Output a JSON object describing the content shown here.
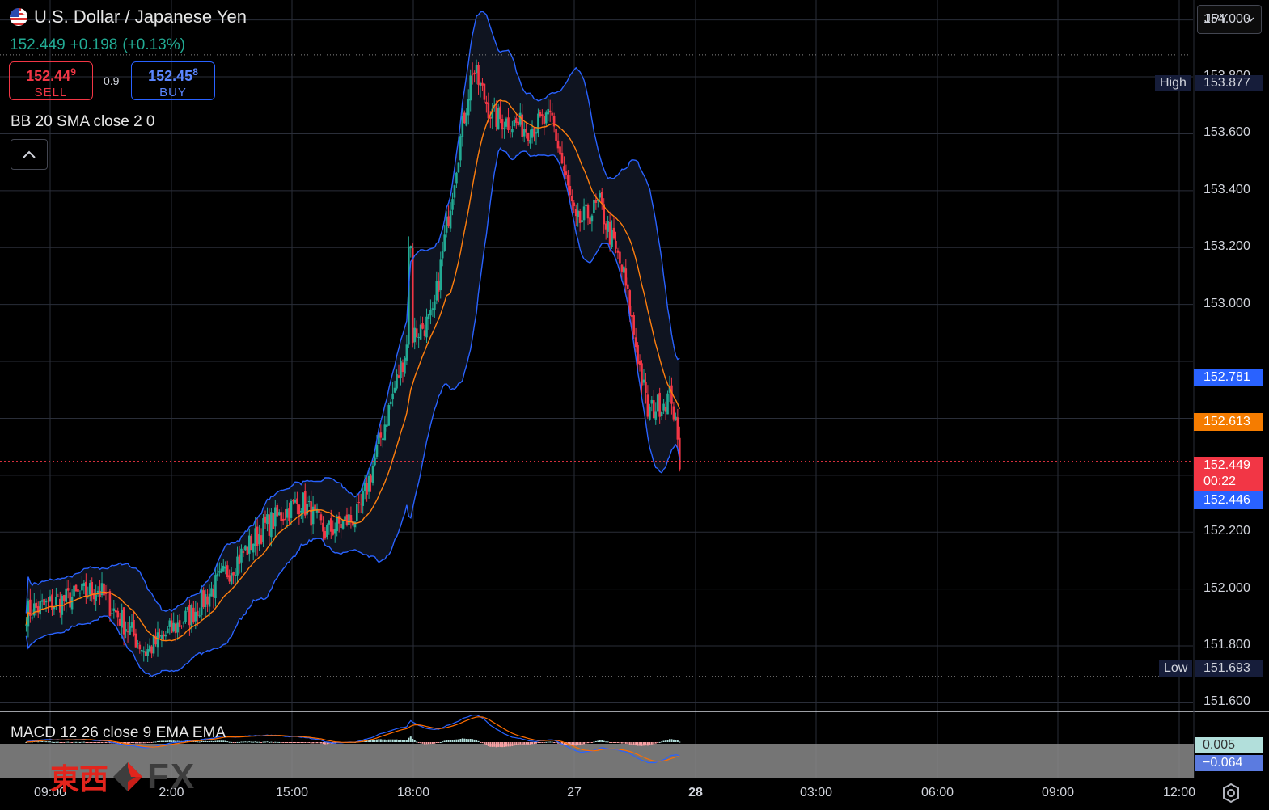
{
  "symbol": {
    "title": "U.S. Dollar / Japanese Yen",
    "last": "152.449",
    "change": "+0.198",
    "change_pct": "(+0.13%)"
  },
  "trade": {
    "sell_price_main": "152.44",
    "sell_price_sup": "9",
    "sell_label": "SELL",
    "spread": "0.9",
    "buy_price_main": "152.45",
    "buy_price_sup": "8",
    "buy_label": "BUY"
  },
  "indicators": {
    "bb_label": "BB 20 SMA close 2 0",
    "macd_label": "MACD 12 26 close 9 EMA EMA",
    "collapse_icon": "chevron-up-icon"
  },
  "currency_select": {
    "value": "JPY"
  },
  "price_axis": {
    "ticks": [
      "154.000",
      "153.800",
      "153.600",
      "153.400",
      "153.200",
      "153.000",
      "152.200",
      "152.000",
      "151.800",
      "151.600"
    ],
    "high_label": "High",
    "high_value": "153.877",
    "low_label": "Low",
    "low_value": "151.693",
    "bb_upper": "152.781",
    "bb_middle": "152.613",
    "current_price": "152.449",
    "countdown": "00:22",
    "bb_lower": "152.446"
  },
  "macd_axis": {
    "macd_value": "0.005",
    "signal_value": "−0.064"
  },
  "time_axis": {
    "ticks": [
      "09:00",
      "2:00",
      "15:00",
      "18:00",
      "27",
      "28",
      "03:00",
      "06:00",
      "09:00",
      "12:00"
    ],
    "bold": [
      false,
      false,
      false,
      false,
      false,
      true,
      false,
      false,
      false,
      false
    ]
  },
  "watermark": {
    "kanji": "東西",
    "fx": "FX"
  },
  "colors": {
    "bull": "#22ab94",
    "bear": "#f23645",
    "bb_band": "#2962ff",
    "bb_basis": "#ff7f0e",
    "grid": "#2a2e39",
    "bg": "#000000"
  },
  "chart_data": {
    "type": "candlestick",
    "symbol": "USD/JPY",
    "interval_minutes": 5,
    "ylim": [
      151.57,
      154.07
    ],
    "anchors": [
      {
        "time": "26 08:00",
        "price": 151.92
      },
      {
        "time": "26 11:00",
        "price": 152.0
      },
      {
        "time": "26 13:00",
        "price": 151.78
      },
      {
        "time": "26 15:00",
        "price": 151.92
      },
      {
        "time": "26 18:00",
        "price": 152.22
      },
      {
        "time": "26 19:30",
        "price": 152.31
      },
      {
        "time": "26 20:30",
        "price": 152.2
      },
      {
        "time": "26 21:55",
        "price": 152.26
      },
      {
        "time": "27 00:00",
        "price": 152.88
      },
      {
        "time": "27 01:00",
        "price": 152.95
      },
      {
        "time": "27 02:00",
        "price": 153.5
      },
      {
        "time": "27 02:40",
        "price": 153.83
      },
      {
        "time": "27 03:30",
        "price": 153.66
      },
      {
        "time": "27 05:00",
        "price": 153.62
      },
      {
        "time": "27 06:00",
        "price": 153.65
      },
      {
        "time": "27 07:00",
        "price": 153.28
      },
      {
        "time": "27 08:00",
        "price": 153.35
      },
      {
        "time": "27 09:00",
        "price": 153.1
      },
      {
        "time": "27 10:00",
        "price": 152.62
      },
      {
        "time": "27 11:00",
        "price": 152.68
      },
      {
        "time": "27 11:20",
        "price": 152.45
      }
    ],
    "high": 153.877,
    "low": 151.693,
    "last": 152.449,
    "bollinger": {
      "period": 20,
      "stddev": 2,
      "upper": 152.781,
      "basis": 152.613,
      "lower": 152.446
    },
    "macd": {
      "fast": 12,
      "slow": 26,
      "signal": 9,
      "macd": 0.005,
      "signal_line": -0.064
    }
  }
}
